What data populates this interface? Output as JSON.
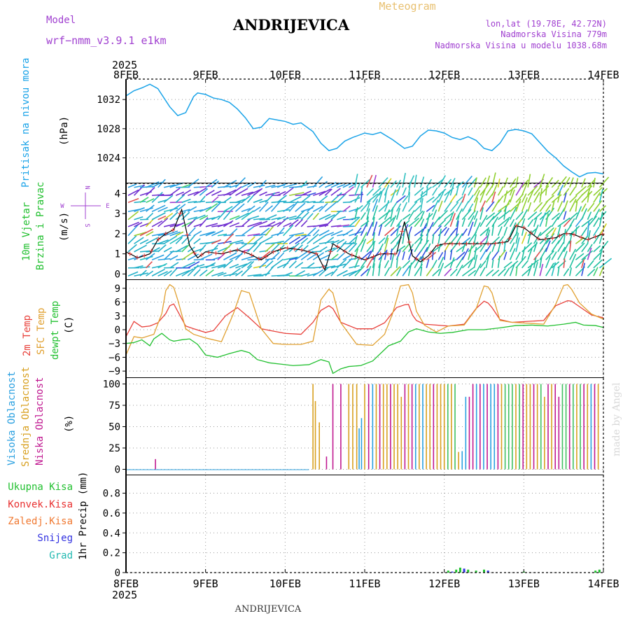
{
  "header": {
    "model_label": "Model",
    "model_name": "wrf−nmm_v3.9.1  e1km",
    "site": "ANDRIJEVICA",
    "product": "Meteogram",
    "lonlat": "lon,lat (19.78E, 42.72N)",
    "elev": "Nadmorska Visina 779m",
    "elev_model": "Nadmorska Visina u modelu 1038.68m",
    "year": "2025",
    "footer_site": "ANDRIJEVICA",
    "credit": "made by Angel"
  },
  "colors": {
    "pressure": "#1aa3e8",
    "temp2m": "#e8403a",
    "sfc": "#e0a030",
    "dew": "#22c030",
    "high_cloud": "#2aa0e0",
    "mid_cloud": "#d8a020",
    "low_cloud": "#c01890",
    "total_precip": "#22c030",
    "conv_precip": "#e83030",
    "frz_precip": "#f07830",
    "snow": "#3030e0",
    "hail": "#20b8b0",
    "wind_speed": "#000000",
    "wind_dir": "#e03030",
    "compass": "#a040d0"
  },
  "x_axis": {
    "start": "2025-02-08T00:00",
    "end": "2025-02-14T00:00",
    "ticks": [
      "8FEB",
      "9FEB",
      "10FEB",
      "11FEB",
      "12FEB",
      "13FEB",
      "14FEB"
    ]
  },
  "chart_data": [
    {
      "type": "line",
      "id": "pressure",
      "side_label": "Pritisak na nivou mora",
      "unit": "(hPa)",
      "ylim": [
        1020.5,
        1034.8
      ],
      "yticks": [
        1024,
        1028,
        1032
      ],
      "grid": true,
      "series": [
        {
          "x": [
            0,
            0.1,
            0.2,
            0.3,
            0.4,
            0.55,
            0.65,
            0.75,
            0.85,
            0.9,
            1.0,
            1.1,
            1.2,
            1.3,
            1.4,
            1.5,
            1.6,
            1.7,
            1.8,
            1.9,
            2.0,
            2.1,
            2.2,
            2.35,
            2.45,
            2.55,
            2.65,
            2.75,
            2.85,
            3.0,
            3.1,
            3.2,
            3.35,
            3.5,
            3.6,
            3.7,
            3.8,
            3.9,
            4.0,
            4.1,
            4.2,
            4.3,
            4.4,
            4.5,
            4.6,
            4.7,
            4.8,
            4.9,
            5.0,
            5.1,
            5.2,
            5.3,
            5.4,
            5.5,
            5.6,
            5.7,
            5.8,
            5.9,
            6.0
          ],
          "y": [
            1032.5,
            1033.2,
            1033.6,
            1034.1,
            1033.5,
            1031.0,
            1029.8,
            1030.2,
            1032.4,
            1032.9,
            1032.7,
            1032.2,
            1032.0,
            1031.6,
            1030.7,
            1029.5,
            1028.0,
            1028.2,
            1029.4,
            1029.2,
            1029.0,
            1028.6,
            1028.8,
            1027.6,
            1026.0,
            1025.0,
            1025.3,
            1026.3,
            1026.8,
            1027.4,
            1027.2,
            1027.5,
            1026.5,
            1025.3,
            1025.6,
            1027.0,
            1027.8,
            1027.7,
            1027.4,
            1026.8,
            1026.5,
            1026.9,
            1026.4,
            1025.3,
            1025.0,
            1026.0,
            1027.7,
            1027.9,
            1027.7,
            1027.3,
            1026.1,
            1024.9,
            1024.0,
            1022.9,
            1022.1,
            1021.4,
            1021.9,
            1022.0,
            1021.8
          ]
        }
      ]
    },
    {
      "type": "wind",
      "id": "wind",
      "side_label": "10m Vjetar Brzina i Pravac",
      "unit": "(m/s)",
      "ylim": [
        -0.3,
        4.5
      ],
      "yticks": [
        0,
        1,
        2,
        3,
        4
      ],
      "compass": [
        "N",
        "S",
        "W",
        "E"
      ],
      "speed": {
        "x": [
          0,
          0.15,
          0.3,
          0.4,
          0.5,
          0.6,
          0.7,
          0.8,
          0.9,
          1.0,
          1.2,
          1.4,
          1.55,
          1.7,
          1.85,
          2.0,
          2.2,
          2.4,
          2.5,
          2.6,
          2.8,
          3.0,
          3.2,
          3.4,
          3.5,
          3.6,
          3.7,
          3.8,
          3.9,
          4.0,
          4.3,
          4.6,
          4.8,
          4.9,
          5.0,
          5.2,
          5.4,
          5.5,
          5.6,
          5.8,
          6.0
        ],
        "y": [
          1.1,
          0.8,
          1.0,
          1.7,
          2.0,
          2.2,
          3.2,
          1.4,
          0.8,
          1.1,
          1.0,
          1.2,
          1.0,
          0.7,
          1.1,
          1.3,
          1.2,
          1.0,
          0.2,
          1.5,
          1.0,
          0.7,
          1.0,
          1.0,
          2.6,
          0.9,
          0.6,
          0.9,
          1.4,
          1.5,
          1.5,
          1.5,
          1.6,
          2.4,
          2.3,
          1.7,
          1.8,
          2.0,
          2.0,
          1.7,
          2.0
        ]
      }
    },
    {
      "type": "line",
      "id": "temperature",
      "side_label": "2m Temp",
      "side_label2": "SFC Temp",
      "side_label3": "dewpt Temp",
      "unit": "(C)",
      "ylim": [
        -10.5,
        10.8
      ],
      "yticks": [
        -9,
        -6,
        -3,
        0,
        3,
        6,
        9
      ],
      "grid": true,
      "series": [
        {
          "name": "2m Temp",
          "x": [
            0,
            0.1,
            0.2,
            0.3,
            0.4,
            0.5,
            0.55,
            0.6,
            0.65,
            0.75,
            0.85,
            1.0,
            1.1,
            1.25,
            1.4,
            1.55,
            1.7,
            1.85,
            2.0,
            2.2,
            2.35,
            2.45,
            2.55,
            2.6,
            2.7,
            2.9,
            3.1,
            3.25,
            3.4,
            3.5,
            3.55,
            3.6,
            3.65,
            3.75,
            3.9,
            4.05,
            4.25,
            4.4,
            4.5,
            4.55,
            4.6,
            4.7,
            4.85,
            5.05,
            5.25,
            5.4,
            5.55,
            5.6,
            5.7,
            5.85,
            6.0
          ],
          "y": [
            -1.5,
            1.8,
            0.6,
            0.8,
            1.5,
            3.5,
            5.2,
            5.6,
            4.0,
            0.8,
            0.2,
            -0.6,
            -0.2,
            3.0,
            4.8,
            2.6,
            0.2,
            -0.3,
            -0.8,
            -1.0,
            1.6,
            4.2,
            5.2,
            4.6,
            1.6,
            0.2,
            0.2,
            1.5,
            4.8,
            5.4,
            5.5,
            3.2,
            2.0,
            1.2,
            1.0,
            0.8,
            1.2,
            4.6,
            6.2,
            5.8,
            4.8,
            2.2,
            1.6,
            1.8,
            2.0,
            5.2,
            6.3,
            6.2,
            5.0,
            3.2,
            2.6
          ]
        },
        {
          "name": "SFC Temp",
          "x": [
            0,
            0.1,
            0.2,
            0.35,
            0.45,
            0.5,
            0.55,
            0.6,
            0.65,
            0.75,
            0.85,
            1.0,
            1.2,
            1.35,
            1.45,
            1.55,
            1.7,
            1.85,
            2.0,
            2.2,
            2.35,
            2.45,
            2.55,
            2.6,
            2.7,
            2.9,
            3.1,
            3.25,
            3.35,
            3.45,
            3.55,
            3.6,
            3.65,
            3.75,
            3.9,
            4.05,
            4.25,
            4.4,
            4.5,
            4.55,
            4.6,
            4.7,
            4.85,
            5.05,
            5.25,
            5.4,
            5.5,
            5.55,
            5.6,
            5.7,
            5.85,
            6.0
          ],
          "y": [
            -5.5,
            -1.5,
            -1.8,
            -1.0,
            3.5,
            8.5,
            9.8,
            9.2,
            6.5,
            0.2,
            -1.0,
            -1.8,
            -2.6,
            3.5,
            8.5,
            8.0,
            0.2,
            -3.0,
            -3.2,
            -3.2,
            -2.5,
            6.5,
            8.8,
            8.0,
            1.5,
            -3.2,
            -3.4,
            -1.0,
            3.5,
            9.5,
            9.8,
            8.0,
            4.0,
            1.0,
            -0.5,
            0.8,
            1.0,
            4.5,
            9.5,
            9.3,
            8.0,
            2.0,
            1.6,
            1.4,
            1.2,
            5.5,
            9.6,
            9.8,
            8.8,
            5.8,
            3.4,
            2.3
          ]
        },
        {
          "name": "dewpt Temp",
          "x": [
            0,
            0.1,
            0.2,
            0.3,
            0.35,
            0.45,
            0.55,
            0.6,
            0.7,
            0.8,
            0.9,
            1.0,
            1.15,
            1.3,
            1.45,
            1.55,
            1.65,
            1.8,
            1.95,
            2.1,
            2.3,
            2.45,
            2.55,
            2.6,
            2.7,
            2.8,
            2.95,
            3.1,
            3.3,
            3.45,
            3.55,
            3.65,
            3.8,
            3.95,
            4.1,
            4.3,
            4.5,
            4.7,
            4.9,
            5.1,
            5.3,
            5.5,
            5.65,
            5.75,
            5.9,
            6.0
          ],
          "y": [
            -3.0,
            -2.8,
            -2.2,
            -3.5,
            -2.0,
            -0.8,
            -2.2,
            -2.5,
            -2.2,
            -2.0,
            -3.2,
            -5.5,
            -6.0,
            -5.2,
            -4.5,
            -5.0,
            -6.5,
            -7.2,
            -7.5,
            -7.8,
            -7.6,
            -6.5,
            -7.0,
            -9.5,
            -8.5,
            -8.0,
            -7.8,
            -6.8,
            -3.5,
            -2.5,
            -0.5,
            0.2,
            -0.5,
            -0.8,
            -0.6,
            0.0,
            0.0,
            0.4,
            0.9,
            1.0,
            0.8,
            1.2,
            1.6,
            1.0,
            0.9,
            0.5
          ]
        }
      ]
    },
    {
      "type": "bar",
      "id": "clouds",
      "side_label": "Visoka Oblacnost",
      "side_label2": "Srednja Oblacnost",
      "side_label3": "Niska Oblacnost",
      "unit": "(%)",
      "ylim": [
        -7,
        107
      ],
      "yticks": [
        0,
        25,
        50,
        75,
        100
      ],
      "grid": true
    },
    {
      "type": "bar",
      "id": "precip",
      "side_labels": [
        "Ukupna Kisa",
        "Konvek.Kisa",
        "Zaledj.Kisa",
        "Snijeg",
        "Grad"
      ],
      "unit": "1hr Precip (mm)",
      "ylim": [
        0,
        0.98
      ],
      "yticks": [
        0,
        0.2,
        0.4,
        0.6,
        0.8
      ],
      "grid": true
    }
  ]
}
